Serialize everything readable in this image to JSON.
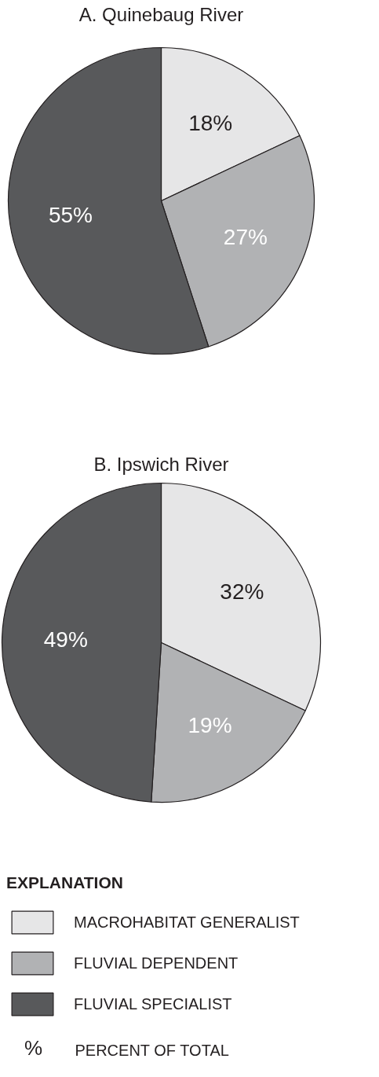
{
  "chart_data": [
    {
      "type": "pie",
      "title": "A. Quinebaug River",
      "categories": [
        "MACROHABITAT GENERALIST",
        "FLUVIAL DEPENDENT",
        "FLUVIAL SPECIALIST"
      ],
      "values": [
        18,
        27,
        55
      ],
      "value_labels": [
        "18%",
        "27%",
        "55%"
      ],
      "colors": [
        "#e6e6e7",
        "#b1b2b4",
        "#58595b"
      ],
      "legend": "bottom",
      "legend_title": "EXPLANATION",
      "annotations": [
        "% PERCENT OF TOTAL"
      ]
    },
    {
      "type": "pie",
      "title": "B. Ipswich River",
      "categories": [
        null,
        null,
        null
      ],
      "values": [
        32,
        19,
        49
      ],
      "value_labels": [
        "32%",
        "19%",
        "49%"
      ],
      "colors": [
        "#e6e6e7",
        "#b1b2b4",
        "#58595b"
      ]
    }
  ]
}
